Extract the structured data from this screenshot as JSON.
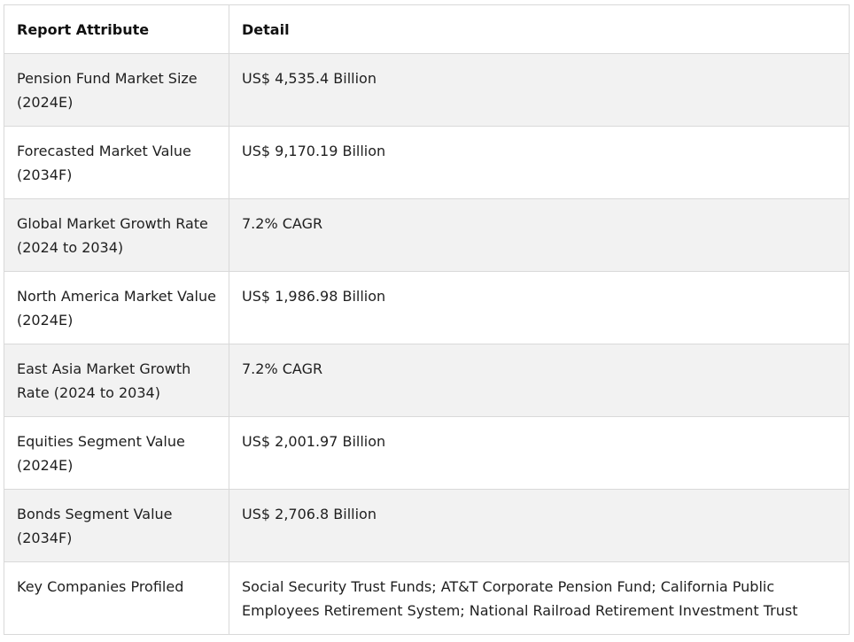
{
  "table": {
    "headers": [
      "Report Attribute",
      "Detail"
    ],
    "rows": [
      {
        "attribute": "Pension Fund Market Size (2024E)",
        "detail": "US$ 4,535.4 Billion"
      },
      {
        "attribute": "Forecasted Market Value (2034F)",
        "detail": "US$ 9,170.19 Billion"
      },
      {
        "attribute": "Global Market Growth Rate (2024 to 2034)",
        "detail": "7.2% CAGR"
      },
      {
        "attribute": "North America Market Value (2024E)",
        "detail": "US$ 1,986.98 Billion"
      },
      {
        "attribute": "East Asia Market Growth Rate (2024 to 2034)",
        "detail": "7.2% CAGR"
      },
      {
        "attribute": "Equities Segment Value (2024E)",
        "detail": "US$ 2,001.97 Billion"
      },
      {
        "attribute": "Bonds Segment Value (2034F)",
        "detail": "US$ 2,706.8 Billion"
      },
      {
        "attribute": "Key Companies Profiled",
        "detail": "Social Security Trust Funds; AT&T Corporate Pension Fund; California Public Employees Retirement System; National Railroad Retirement Investment Trust"
      }
    ]
  }
}
